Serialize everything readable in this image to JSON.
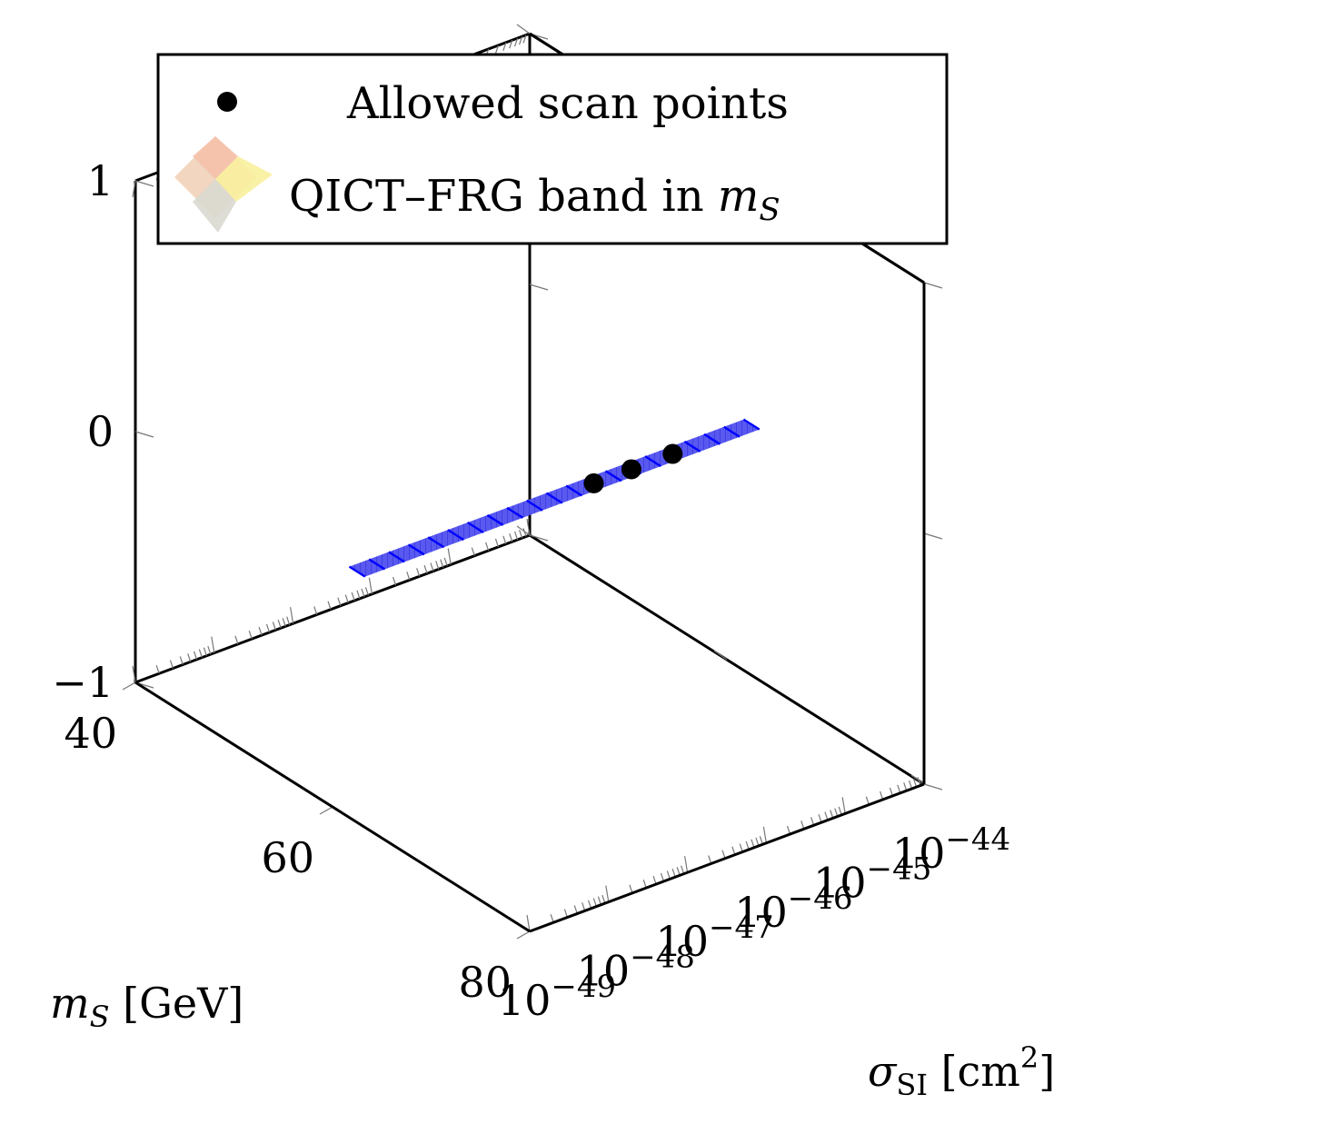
{
  "chart_data": {
    "type": "scatter",
    "title": "",
    "xlabel": "σ_SI [cm^2]",
    "ylabel": "m_S [GeV]",
    "zlabel": "",
    "x_scale": "log",
    "xlim": [
      1e-49,
      1e-44
    ],
    "ylim": [
      40,
      80
    ],
    "zlim": [
      -1,
      1
    ],
    "x_tick_labels": [
      "10^-49",
      "10^-48",
      "10^-47",
      "10^-46",
      "10^-45",
      "10^-44"
    ],
    "y_tick_labels": [
      "40",
      "60",
      "80"
    ],
    "z_tick_labels": [
      "−1",
      "0",
      "1"
    ],
    "legend_position": "top-left",
    "series": [
      {
        "name": "Allowed scan points",
        "kind": "points",
        "color": "#000000",
        "x": [
          1e-46,
          3e-46,
          1e-45
        ],
        "y": [
          62.5,
          62.5,
          62.5
        ],
        "z": [
          0,
          0,
          0
        ]
      },
      {
        "name": "QICT–FRG band in m_S",
        "kind": "band",
        "color": "#0000ff",
        "x_range": [
          1e-49,
          1e-44
        ],
        "y_range": [
          61.7,
          63.3
        ],
        "z": 0
      }
    ]
  }
}
